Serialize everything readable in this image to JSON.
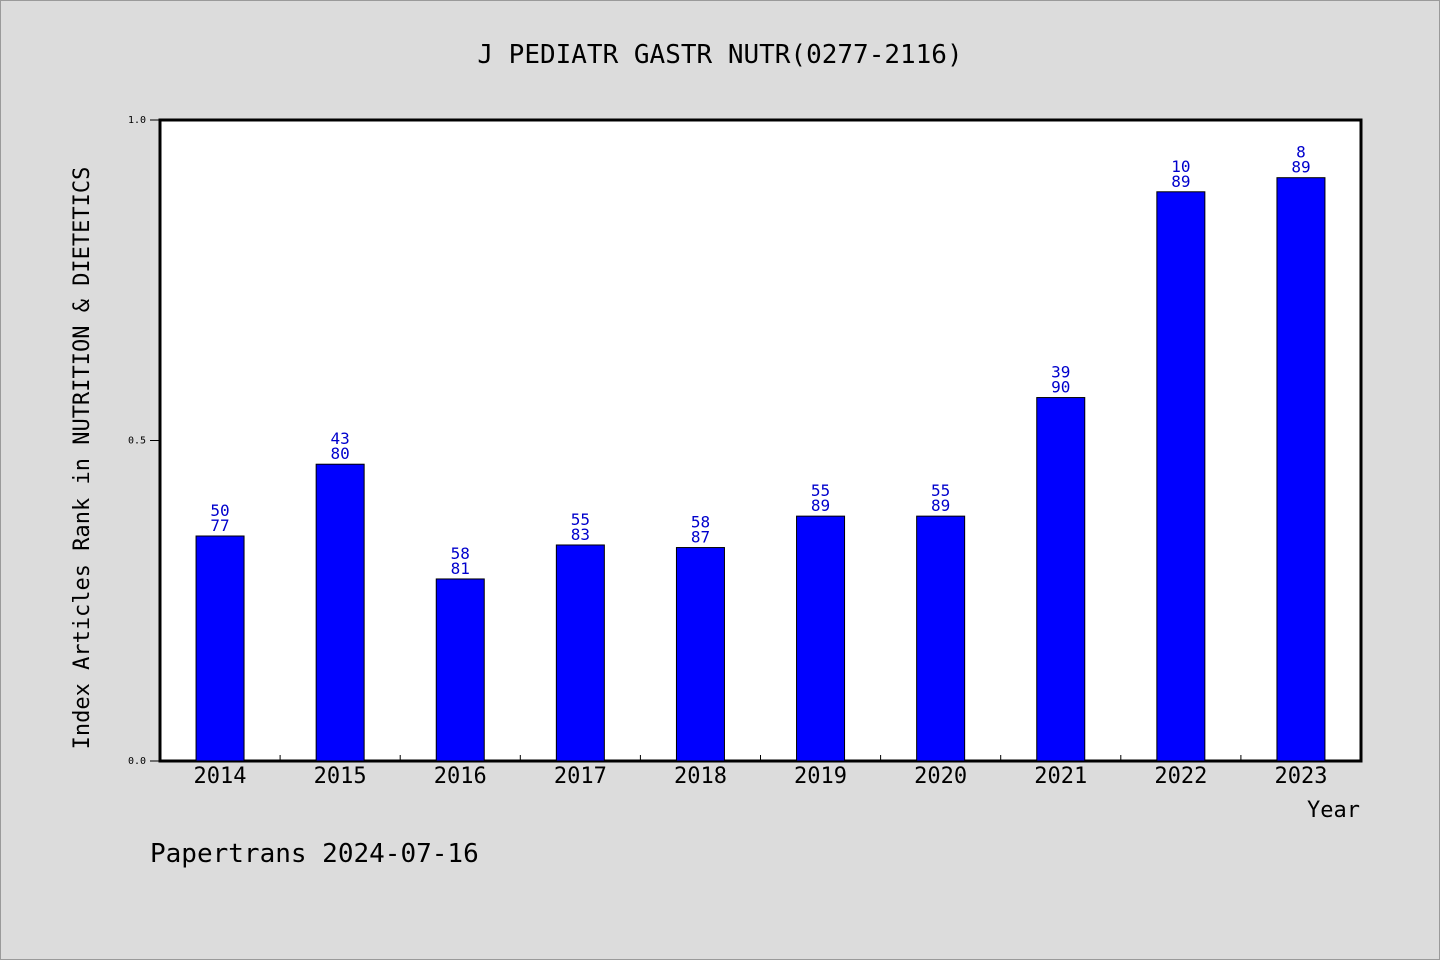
{
  "chart_data": {
    "type": "bar",
    "title": "J PEDIATR GASTR NUTR(0277-2116)",
    "xlabel": "Year",
    "ylabel": "Index Articles Rank in NUTRITION & DIETETICS",
    "ylim": [
      0,
      1
    ],
    "yticks": [
      "0.0",
      "0.5",
      "1.0"
    ],
    "categories": [
      "2014",
      "2015",
      "2016",
      "2017",
      "2018",
      "2019",
      "2020",
      "2021",
      "2022",
      "2023"
    ],
    "values": [
      0.351,
      0.463,
      0.284,
      0.337,
      0.333,
      0.382,
      0.382,
      0.567,
      0.888,
      0.91
    ],
    "rank": [
      "50",
      "43",
      "58",
      "55",
      "58",
      "55",
      "55",
      "39",
      "10",
      "8"
    ],
    "total": [
      "77",
      "80",
      "81",
      "83",
      "87",
      "89",
      "89",
      "90",
      "89",
      "89"
    ],
    "bar_color": "#0000ff",
    "label_color": "#0000cc",
    "grid": false,
    "legend": "none"
  },
  "footer": "Papertrans 2024-07-16"
}
